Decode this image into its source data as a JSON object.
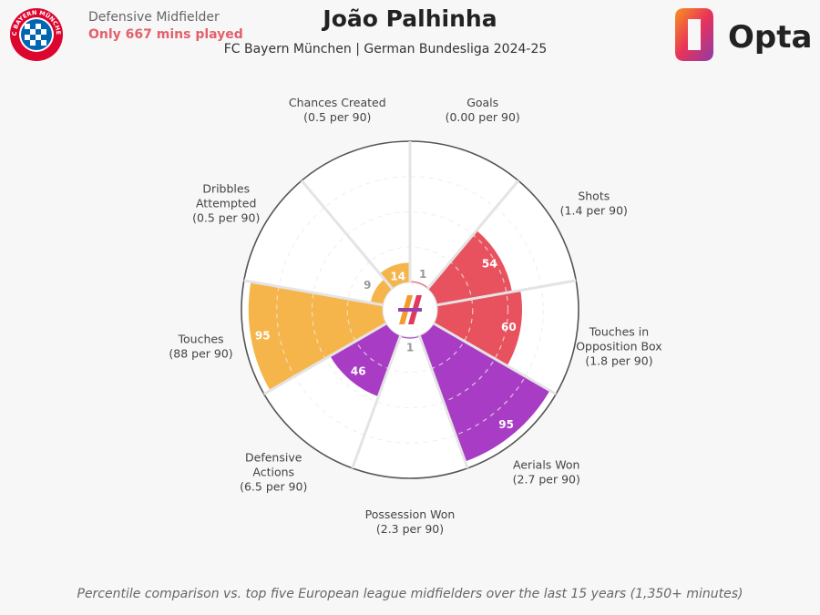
{
  "header": {
    "position": "Defensive Midfielder",
    "minutes_note": "Only 667 mins played",
    "player": "João Palhinha",
    "subtitle": "FC Bayern München | German Bundesliga 2024-25",
    "club_logo_text": "FC BAYERN MÜNCHEN",
    "brand": "Opta"
  },
  "footer": "Percentile comparison vs. top five European league midfielders over the last 15 years (1,350+ minutes)",
  "colors": {
    "attacking": "#e8525e",
    "defending": "#a93cc4",
    "possession": "#f5b54b"
  },
  "chart_data": {
    "type": "radar",
    "scale": [
      0,
      100
    ],
    "rings": 4,
    "categories": [
      {
        "name": [
          "Goals"
        ],
        "per90": "(0.00 per 90)",
        "percentile": 1,
        "group": "attacking"
      },
      {
        "name": [
          "Shots"
        ],
        "per90": "(1.4 per 90)",
        "percentile": 54,
        "group": "attacking"
      },
      {
        "name": [
          "Touches in",
          "Opposition Box"
        ],
        "per90": "(1.8 per 90)",
        "percentile": 60,
        "group": "attacking"
      },
      {
        "name": [
          "Aerials Won"
        ],
        "per90": "(2.7 per 90)",
        "percentile": 95,
        "group": "defending"
      },
      {
        "name": [
          "Possession Won"
        ],
        "per90": "(2.3 per 90)",
        "percentile": 1,
        "group": "defending"
      },
      {
        "name": [
          "Defensive",
          "Actions"
        ],
        "per90": "(6.5 per 90)",
        "percentile": 46,
        "group": "defending"
      },
      {
        "name": [
          "Touches"
        ],
        "per90": "(88 per 90)",
        "percentile": 95,
        "group": "possession"
      },
      {
        "name": [
          "Dribbles",
          "Attempted"
        ],
        "per90": "(0.5 per 90)",
        "percentile": 9,
        "group": "possession"
      },
      {
        "name": [
          "Chances Created"
        ],
        "per90": "(0.5 per 90)",
        "percentile": 14,
        "group": "possession"
      }
    ]
  }
}
